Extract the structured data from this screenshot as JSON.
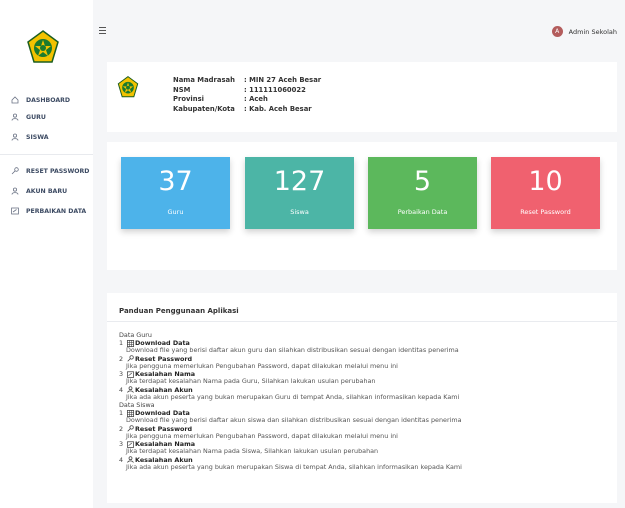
{
  "sidebar": {
    "logo_icon": "kemenag-emblem-icon",
    "items": [
      {
        "label": "DASHBOARD",
        "icon": "home-icon"
      },
      {
        "label": "GURU",
        "icon": "user-icon"
      },
      {
        "label": "SISWA",
        "icon": "user-icon"
      },
      {
        "label": "RESET PASSWORD",
        "icon": "key-icon"
      },
      {
        "label": "AKUN BARU",
        "icon": "user-icon"
      },
      {
        "label": "PERBAIKAN DATA",
        "icon": "edit-icon"
      }
    ]
  },
  "header": {
    "menu_icon": "hamburger-icon",
    "avatar_letter": "A",
    "user_name": "Admin Sekolah"
  },
  "school": {
    "rows": [
      {
        "label": "Nama Madrasah",
        "value": ": MIN 27 Aceh Besar"
      },
      {
        "label": "NSM",
        "value": ": 111111060022"
      },
      {
        "label": "Provinsi",
        "value": ": Aceh"
      },
      {
        "label": "Kabupaten/Kota",
        "value": ": Kab. Aceh Besar"
      }
    ]
  },
  "stats": [
    {
      "value": "37",
      "label": "Guru",
      "color": "#4db3ea"
    },
    {
      "value": "127",
      "label": "Siswa",
      "color": "#4cb5a6"
    },
    {
      "value": "5",
      "label": "Perbaikan Data",
      "color": "#5cb85c"
    },
    {
      "value": "10",
      "label": "Reset Password",
      "color": "#f0616f"
    }
  ],
  "guide": {
    "title": "Panduan Penggunaan Aplikasi",
    "sections": [
      {
        "title": "Data Guru",
        "items": [
          {
            "num": "1",
            "icon": "table-icon",
            "heading": "Download Data",
            "desc": "Download file yang berisi daftar akun guru dan silahkan distribusikan sesuai dengan identitas penerima"
          },
          {
            "num": "2",
            "icon": "key-icon",
            "heading": "Reset Password",
            "desc": "Jika pengguna memerlukan Pengubahan Password, dapat dilakukan melalui menu ini"
          },
          {
            "num": "3",
            "icon": "edit-icon",
            "heading": "Kesalahan Nama",
            "desc": "Jika terdapat kesalahan Nama pada Guru, Silahkan lakukan usulan perubahan"
          },
          {
            "num": "4",
            "icon": "user-icon",
            "heading": "Kesalahan Akun",
            "desc": "Jika ada akun peserta yang bukan merupakan Guru di tempat Anda, silahkan informasikan kepada Kami"
          }
        ]
      },
      {
        "title": "Data Siswa",
        "items": [
          {
            "num": "1",
            "icon": "table-icon",
            "heading": "Download Data",
            "desc": "Download file yang berisi daftar akun siswa dan silahkan distribusikan sesuai dengan identitas penerima"
          },
          {
            "num": "2",
            "icon": "key-icon",
            "heading": "Reset Password",
            "desc": "Jika pengguna memerlukan Pengubahan Password, dapat dilakukan melalui menu ini"
          },
          {
            "num": "3",
            "icon": "edit-icon",
            "heading": "Kesalahan Nama",
            "desc": "Jika terdapat kesalahan Nama pada Siswa, Silahkan lakukan usulan perubahan"
          },
          {
            "num": "4",
            "icon": "user-icon",
            "heading": "Kesalahan Akun",
            "desc": "Jika ada akun peserta yang bukan merupakan Siswa di tempat Anda, silahkan informasikan kepada Kami"
          }
        ]
      }
    ]
  }
}
